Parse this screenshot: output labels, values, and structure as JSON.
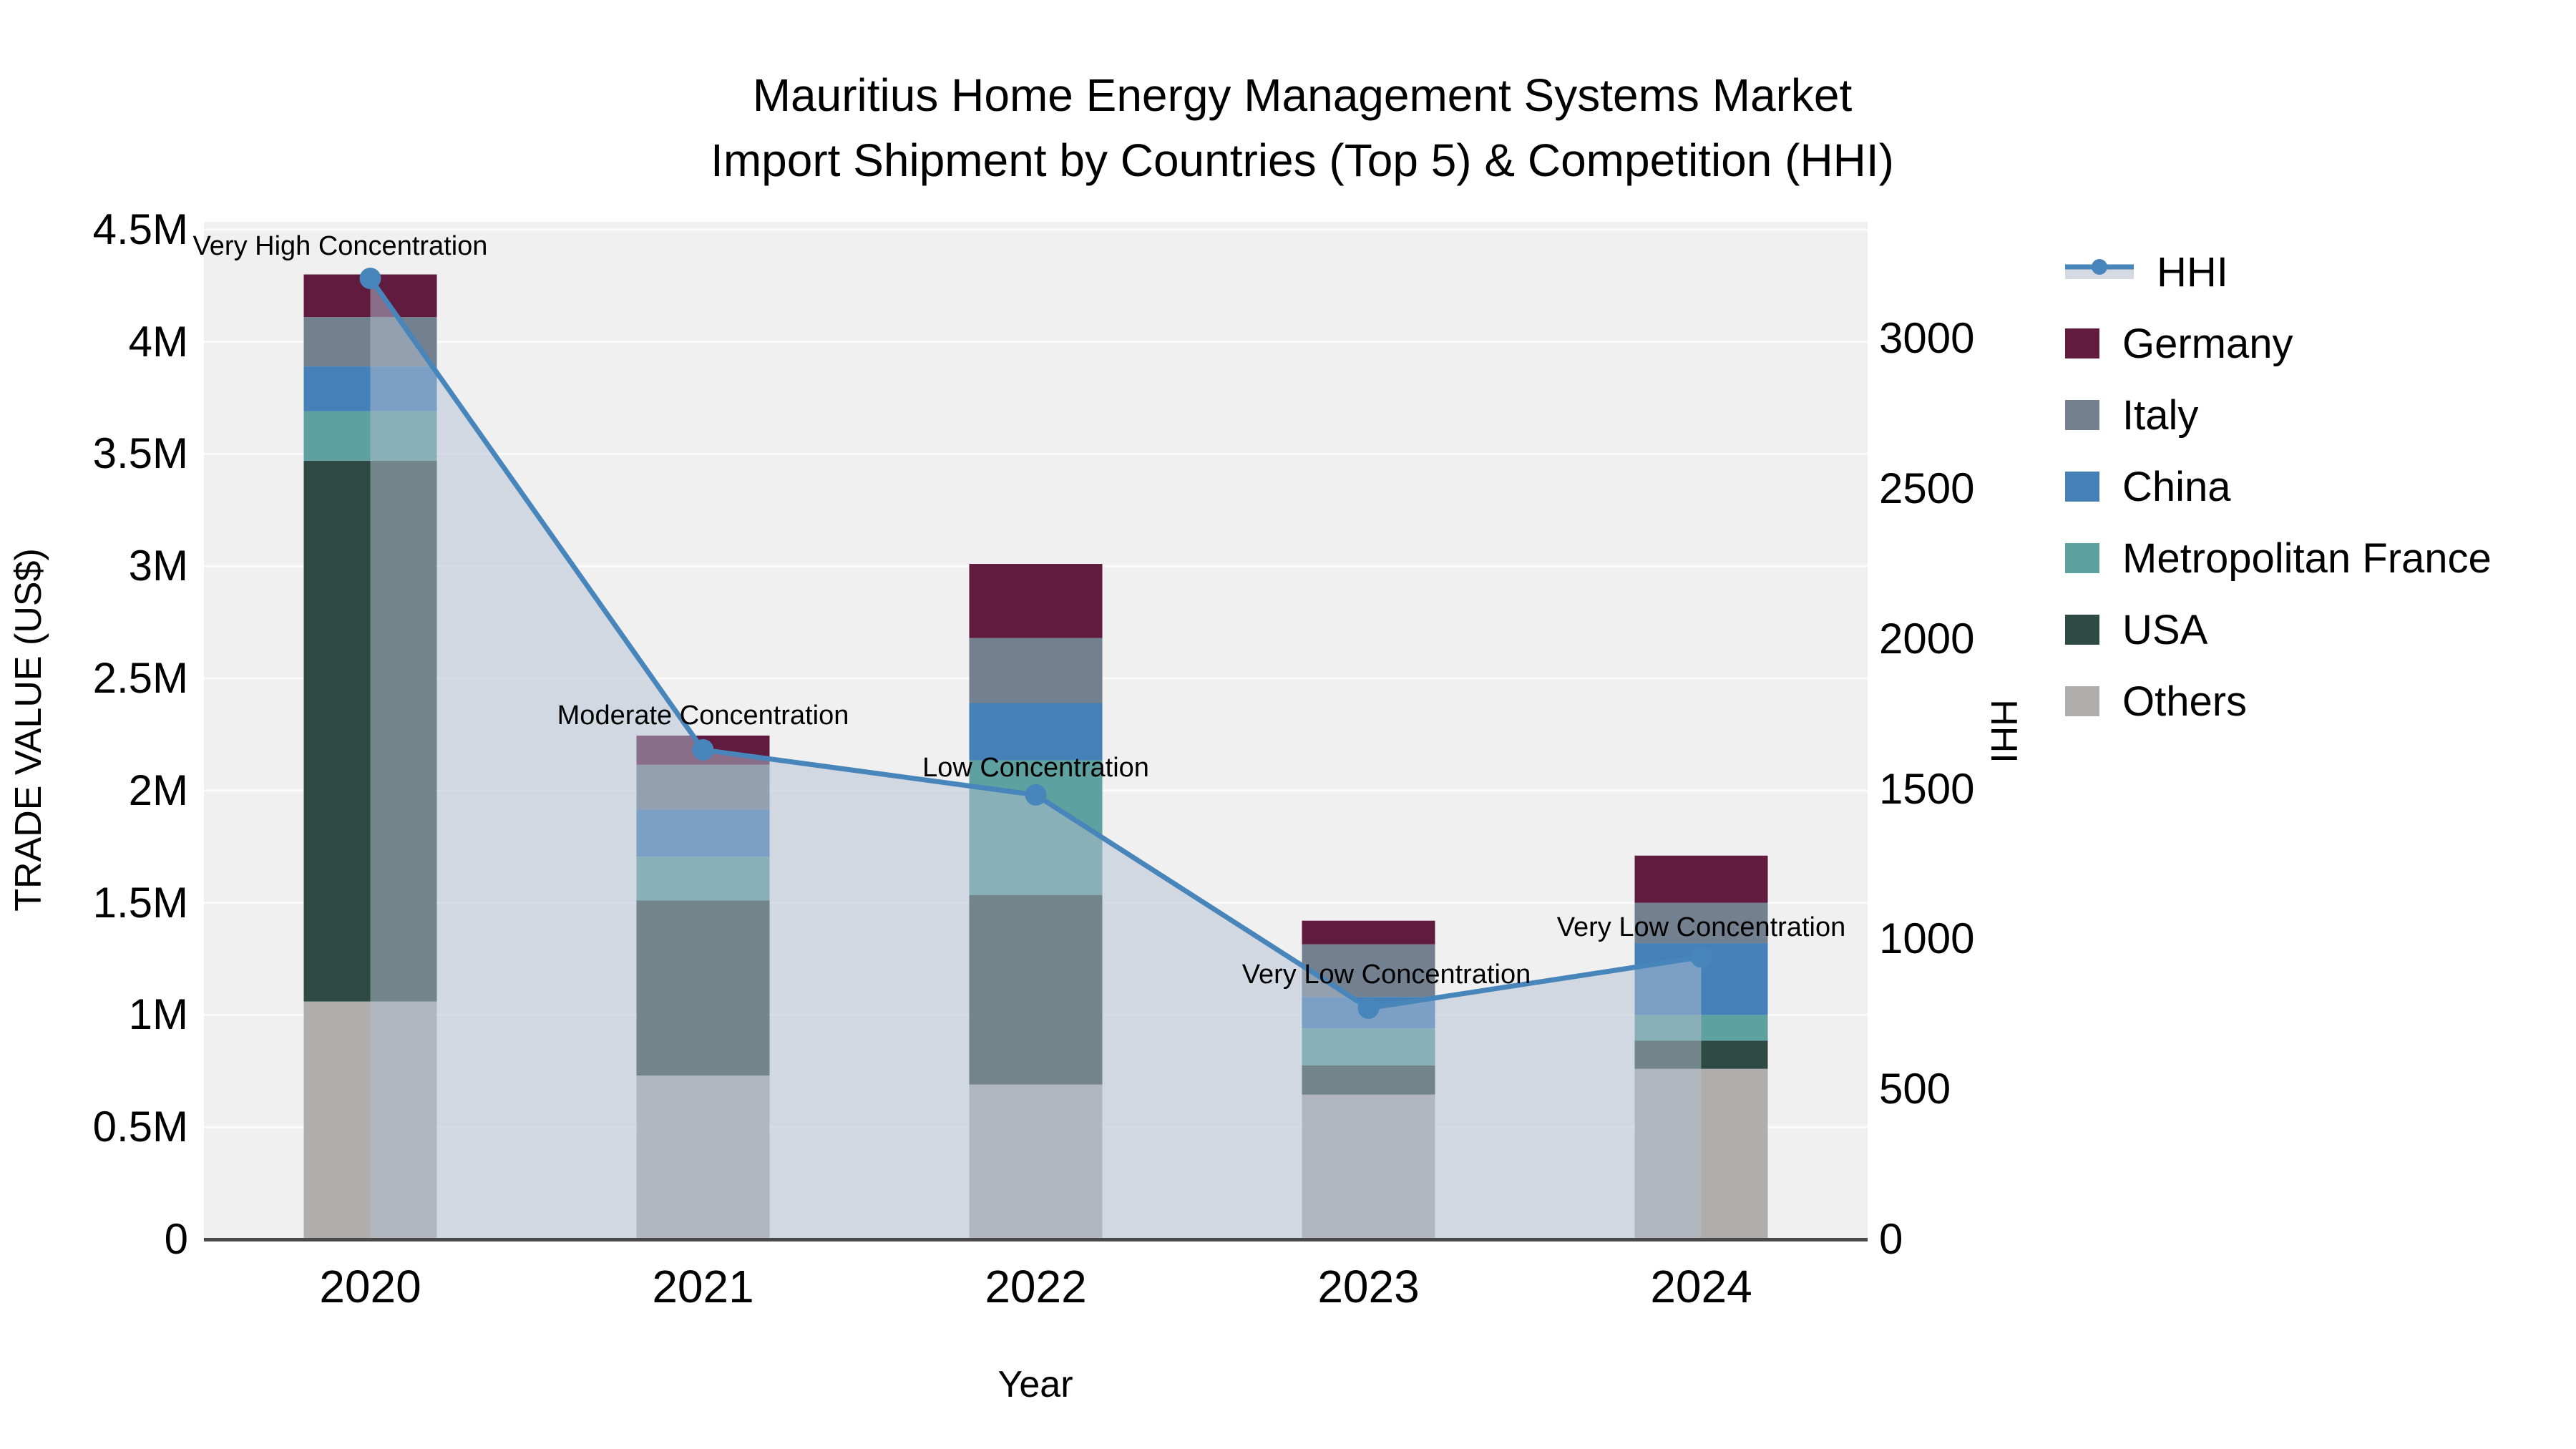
{
  "title": {
    "line1": "Mauritius Home Energy Management Systems Market",
    "line2": "Import Shipment by Countries (Top 5) & Competition (HHI)"
  },
  "axes": {
    "x": {
      "title": "Year",
      "ticks": [
        "2020",
        "2021",
        "2022",
        "2023",
        "2024"
      ]
    },
    "left": {
      "title": "TRADE VALUE (US$)",
      "ticks": [
        {
          "label": "0",
          "value": 0
        },
        {
          "label": "0.5M",
          "value": 0.5
        },
        {
          "label": "1M",
          "value": 1
        },
        {
          "label": "1.5M",
          "value": 1.5
        },
        {
          "label": "2M",
          "value": 2
        },
        {
          "label": "2.5M",
          "value": 2.5
        },
        {
          "label": "3M",
          "value": 3
        },
        {
          "label": "3.5M",
          "value": 3.5
        },
        {
          "label": "4M",
          "value": 4
        },
        {
          "label": "4.5M",
          "value": 4.5
        }
      ]
    },
    "right": {
      "title": "HHI",
      "ticks": [
        {
          "label": "0",
          "value": 0
        },
        {
          "label": "500",
          "value": 500
        },
        {
          "label": "1000",
          "value": 1000
        },
        {
          "label": "1500",
          "value": 1500
        },
        {
          "label": "2000",
          "value": 2000
        },
        {
          "label": "2500",
          "value": 2500
        },
        {
          "label": "3000",
          "value": 3000
        }
      ]
    }
  },
  "chart_data": {
    "type": "bar+line combo (stacked bars, dual y-axes)",
    "categories": [
      "2020",
      "2021",
      "2022",
      "2023",
      "2024"
    ],
    "bar_unit": "million US$",
    "bar_series": [
      {
        "name": "Germany",
        "color": "#611B3E",
        "values": [
          0.19,
          0.13,
          0.33,
          0.105,
          0.21
        ]
      },
      {
        "name": "Italy",
        "color": "#72808F",
        "values": [
          0.22,
          0.2,
          0.29,
          0.235,
          0.18
        ]
      },
      {
        "name": "China",
        "color": "#4580B8",
        "values": [
          0.2,
          0.21,
          0.255,
          0.14,
          0.32
        ]
      },
      {
        "name": "Metropolitan France",
        "color": "#5FA1A0",
        "values": [
          0.22,
          0.195,
          0.6,
          0.165,
          0.115
        ]
      },
      {
        "name": "USA",
        "color": "#2F4A45",
        "values": [
          2.41,
          0.78,
          0.845,
          0.13,
          0.125
        ]
      },
      {
        "name": "Others",
        "color": "#B0AEAC",
        "values": [
          1.06,
          0.73,
          0.69,
          0.645,
          0.76
        ]
      }
    ],
    "bar_totals": [
      4.3,
      2.245,
      3.01,
      1.42,
      1.71
    ],
    "line_series": {
      "name": "HHI",
      "color": "#4785BA",
      "area_color": "rgba(180,192,210,0.5)",
      "values": [
        3200,
        1630,
        1480,
        770,
        940
      ]
    },
    "annotations": [
      {
        "text": "Very High Concentration",
        "year": "2020"
      },
      {
        "text": "Moderate Concentration",
        "year": "2021"
      },
      {
        "text": "Low Concentration",
        "year": "2022"
      },
      {
        "text": "Very Low Concentration",
        "year": "2023"
      },
      {
        "text": "Very Low Concentration",
        "year": "2024"
      }
    ],
    "ylim_left": [
      0,
      4.5
    ],
    "ylim_right": [
      0,
      3388
    ],
    "grid": "horizontal, at 0.5M steps",
    "legend_position": "right, outside plot"
  },
  "legend": {
    "items": [
      "HHI",
      "Germany",
      "Italy",
      "China",
      "Metropolitan France",
      "USA",
      "Others"
    ]
  },
  "style": {
    "plot_bg": "#F0F0F0",
    "gridline": "#FAFAFA",
    "axis_line": "#4A4A4A",
    "hhi_swatch_band": "#D5DAE2"
  }
}
